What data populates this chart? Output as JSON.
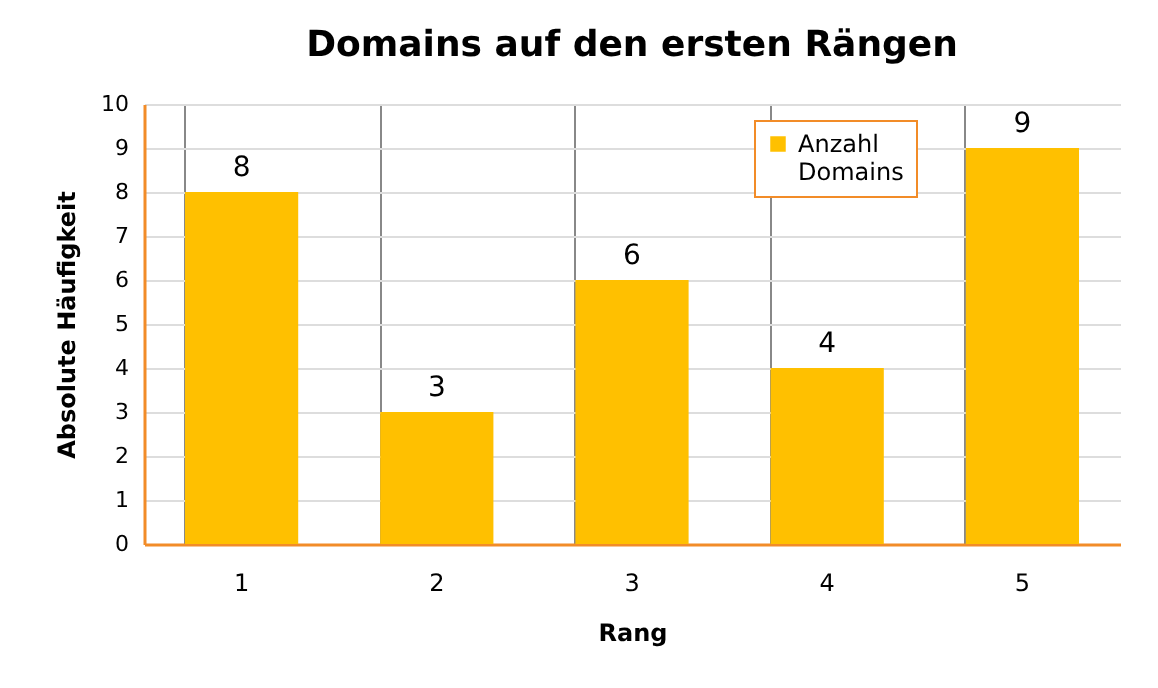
{
  "chart_data": {
    "type": "bar",
    "title": "Domains auf den ersten Rängen",
    "xlabel": "Rang",
    "ylabel": "Absolute Häufigkeit",
    "categories": [
      "1",
      "2",
      "3",
      "4",
      "5"
    ],
    "series": [
      {
        "name": "Anzahl Domains",
        "color": "#ffc000",
        "values": [
          8,
          3,
          6,
          4,
          9
        ]
      }
    ],
    "ylim": [
      0,
      10
    ],
    "yticks": [
      0,
      1,
      2,
      3,
      4,
      5,
      6,
      7,
      8,
      9,
      10
    ],
    "grid": true,
    "legend": "top right",
    "data_labels": true
  }
}
